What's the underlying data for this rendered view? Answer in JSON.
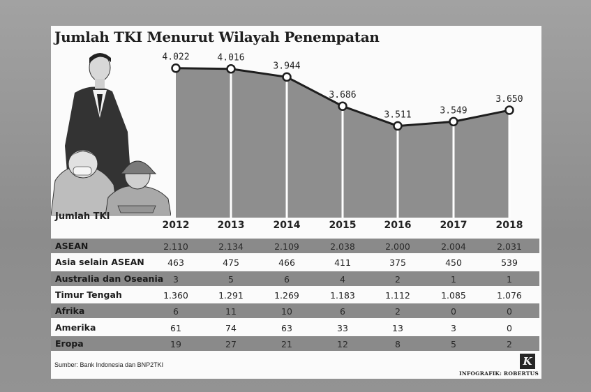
{
  "title": "Jumlah TKI Menurut Wilayah Penempatan",
  "y_label": "Jumlah TKI",
  "source": "Sumber: Bank Indonesia dan BNP2TKI",
  "credit": "INFOGRAFIK: ROBERTUS",
  "logo": "K",
  "chart_data": {
    "type": "area",
    "title": "Jumlah TKI Menurut Wilayah Penempatan",
    "xlabel": "",
    "ylabel": "Jumlah TKI",
    "categories": [
      "2012",
      "2013",
      "2014",
      "2015",
      "2016",
      "2017",
      "2018"
    ],
    "values": [
      4022,
      4016,
      3944,
      3686,
      3511,
      3549,
      3650
    ],
    "value_labels": [
      "4.022",
      "4.016",
      "3.944",
      "3.686",
      "3.511",
      "3.549",
      "3.650"
    ],
    "ylim": [
      2700,
      4150
    ],
    "grid": false,
    "table": {
      "type": "table",
      "columns": [
        "2012",
        "2013",
        "2014",
        "2015",
        "2016",
        "2017",
        "2018"
      ],
      "rows": [
        {
          "name": "ASEAN",
          "values": [
            "2.110",
            "2.134",
            "2.109",
            "2.038",
            "2.000",
            "2.004",
            "2.031"
          ],
          "shaded": true
        },
        {
          "name": "Asia selain ASEAN",
          "values": [
            "463",
            "475",
            "466",
            "411",
            "375",
            "450",
            "539"
          ],
          "shaded": false
        },
        {
          "name": "Australia dan Oseania",
          "values": [
            "3",
            "5",
            "6",
            "4",
            "2",
            "1",
            "1"
          ],
          "shaded": true
        },
        {
          "name": "Timur Tengah",
          "values": [
            "1.360",
            "1.291",
            "1.269",
            "1.183",
            "1.112",
            "1.085",
            "1.076"
          ],
          "shaded": false
        },
        {
          "name": "Afrika",
          "values": [
            "6",
            "11",
            "10",
            "6",
            "2",
            "0",
            "0"
          ],
          "shaded": true
        },
        {
          "name": "Amerika",
          "values": [
            "61",
            "74",
            "63",
            "33",
            "13",
            "3",
            "0"
          ],
          "shaded": false
        },
        {
          "name": "Eropa",
          "values": [
            "19",
            "27",
            "21",
            "12",
            "8",
            "5",
            "2"
          ],
          "shaded": true
        }
      ]
    }
  },
  "colors": {
    "area_fill": "#8e8e8e",
    "line": "#1e1e1e",
    "row_shade": "#8a8a8a",
    "marker_fill": "#ffffff"
  },
  "illustration": {
    "icon": "workers-illustration-icon"
  }
}
